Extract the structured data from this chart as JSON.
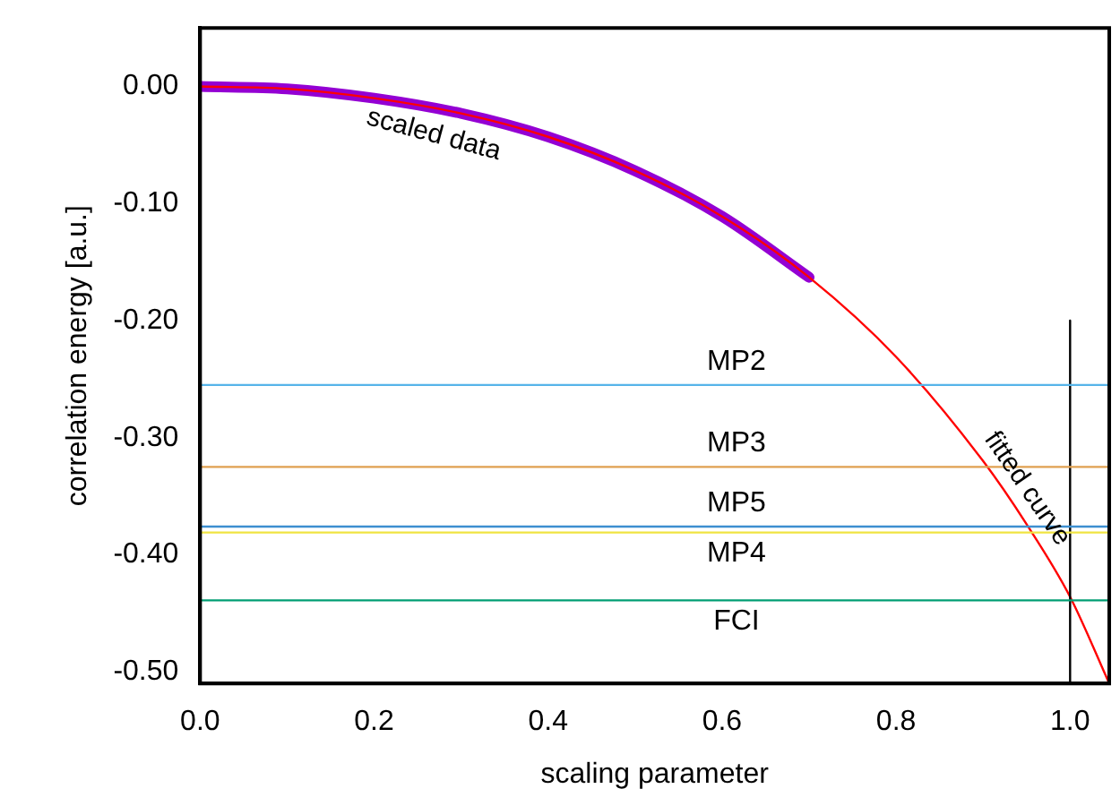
{
  "chart_data": {
    "type": "line",
    "xlabel": "scaling parameter",
    "ylabel": "correlation energy [a.u.]",
    "xlim": [
      0,
      1.045
    ],
    "ylim": [
      -0.51,
      0.05
    ],
    "xticks": [
      {
        "value": 0,
        "label": "0.0"
      },
      {
        "value": 0.2,
        "label": "0.2"
      },
      {
        "value": 0.4,
        "label": "0.4"
      },
      {
        "value": 0.6,
        "label": "0.6"
      },
      {
        "value": 0.8,
        "label": "0.8"
      },
      {
        "value": 1,
        "label": "1.0"
      }
    ],
    "yticks": [
      {
        "value": 0,
        "label": "0.00"
      },
      {
        "value": -0.1,
        "label": "-0.10"
      },
      {
        "value": -0.2,
        "label": "-0.20"
      },
      {
        "value": -0.3,
        "label": "-0.30"
      },
      {
        "value": -0.4,
        "label": "-0.40"
      },
      {
        "value": -0.5,
        "label": "-0.50"
      }
    ],
    "grid": false,
    "legend": false,
    "marker": "none",
    "series": [
      {
        "name": "scaled data",
        "color": "#9400d3",
        "x": [
          0,
          0.1,
          0.2,
          0.3,
          0.4,
          0.5,
          0.6,
          0.7
        ],
        "values": [
          0,
          -0.002,
          -0.01,
          -0.023,
          -0.043,
          -0.072,
          -0.111,
          -0.163
        ]
      },
      {
        "name": "fitted curve",
        "color": "#ff0000",
        "x": [
          0,
          0.1,
          0.2,
          0.3,
          0.4,
          0.5,
          0.6,
          0.7,
          0.8,
          0.9,
          0.95,
          1,
          1.045
        ],
        "values": [
          0,
          -0.002,
          -0.01,
          -0.023,
          -0.043,
          -0.072,
          -0.111,
          -0.163,
          -0.231,
          -0.32,
          -0.374,
          -0.436,
          -0.51
        ]
      },
      {
        "color": "#000000",
        "x": [
          1,
          1
        ],
        "values": [
          -0.2,
          -0.51
        ]
      }
    ],
    "ref_lines": [
      {
        "axis": "y",
        "value": -0.255,
        "label": "MP2",
        "color": "#56b4e9"
      },
      {
        "axis": "y",
        "value": -0.325,
        "label": "MP3",
        "color": "#e0a050"
      },
      {
        "axis": "y",
        "value": -0.376,
        "label": "MP5",
        "color": "#3d8fd0"
      },
      {
        "axis": "y",
        "value": -0.381,
        "label": "MP4",
        "color": "#f0e442"
      },
      {
        "axis": "y",
        "value": -0.439,
        "label": "FCI",
        "color": "#009e73"
      }
    ]
  }
}
